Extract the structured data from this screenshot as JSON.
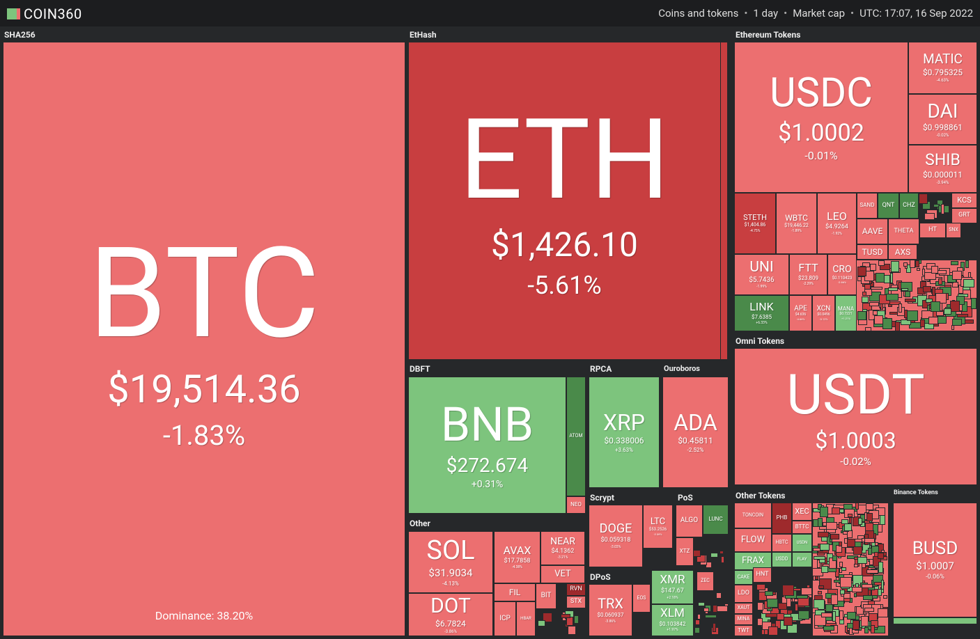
{
  "header": {
    "logo": "COIN360",
    "filters": [
      "Coins and tokens",
      "1 day",
      "Market cap",
      "UTC: 17:07, 16 Sep 2022"
    ]
  },
  "groups": [
    {
      "label": "SHA256",
      "dominance": "Dominance: 38.20%",
      "tiles": [
        {
          "symbol": "BTC",
          "price": "$19,514.36",
          "change": "-1.83%"
        }
      ]
    },
    {
      "label": "EtHash",
      "tiles": [
        {
          "symbol": "ETH",
          "price": "$1,426.10",
          "change": "-5.61%"
        }
      ]
    },
    {
      "label": "Ethereum Tokens",
      "tiles": [
        {
          "symbol": "USDC",
          "price": "$1.0002",
          "change": "-0.01%"
        },
        {
          "symbol": "MATIC",
          "price": "$0.795325",
          "change": "-4.63%"
        },
        {
          "symbol": "DAI",
          "price": "$0.998861",
          "change": "-0.02%"
        },
        {
          "symbol": "SHIB",
          "price": "$0.000011",
          "change": "-3.94%"
        },
        {
          "symbol": "STETH",
          "price": "$1,404.86",
          "change": "-4.75%"
        },
        {
          "symbol": "WBTC",
          "price": "$19,446.22",
          "change": "-1.89%"
        },
        {
          "symbol": "LEO",
          "price": "$4.9264",
          "change": "-1.92%"
        },
        {
          "symbol": "UNI",
          "price": "$5.7436",
          "change": "-1.99%"
        },
        {
          "symbol": "FTT",
          "price": "$23.809",
          "change": "-2.29%"
        },
        {
          "symbol": "CRO",
          "price": "$0.110423",
          "change": "-2.66%"
        },
        {
          "symbol": "LINK",
          "price": "$7.6385",
          "change": "+6.33%"
        },
        {
          "symbol": "APE",
          "price": "$4.636",
          "change": "-4.66%"
        },
        {
          "symbol": "XCN",
          "price": "$0.0496",
          "change": "-3.12%"
        },
        {
          "symbol": "MANA",
          "price": "$0.7221",
          "change": "+1.21%"
        },
        {
          "symbol": "SAND"
        },
        {
          "symbol": "QNT"
        },
        {
          "symbol": "CHZ"
        },
        {
          "symbol": "KCS"
        },
        {
          "symbol": "GRT"
        },
        {
          "symbol": "AAVE"
        },
        {
          "symbol": "THETA"
        },
        {
          "symbol": "HT"
        },
        {
          "symbol": "SNX"
        },
        {
          "symbol": "TUSD"
        },
        {
          "symbol": "AXS"
        }
      ]
    },
    {
      "label": "Omni Tokens",
      "tiles": [
        {
          "symbol": "USDT",
          "price": "$1.0003",
          "change": "-0.02%"
        }
      ]
    },
    {
      "label": "DBFT",
      "tiles": [
        {
          "symbol": "BNB",
          "price": "$272.674",
          "change": "+0.31%"
        },
        {
          "symbol": "ATOM"
        },
        {
          "symbol": "NEO"
        }
      ]
    },
    {
      "label": "RPCA",
      "tiles": [
        {
          "symbol": "XRP",
          "price": "$0.338006",
          "change": "+3.63%"
        }
      ]
    },
    {
      "label": "Ouroboros",
      "tiles": [
        {
          "symbol": "ADA",
          "price": "$0.45811",
          "change": "-2.52%"
        }
      ]
    },
    {
      "label": "Other",
      "tiles": [
        {
          "symbol": "SOL",
          "price": "$31.9034",
          "change": "-4.13%"
        },
        {
          "symbol": "DOT",
          "price": "$6.7824",
          "change": "-3.86%"
        },
        {
          "symbol": "AVAX",
          "price": "$17.7858",
          "change": "-4.38%"
        },
        {
          "symbol": "NEAR",
          "price": "$4.1362",
          "change": "-3.21%"
        },
        {
          "symbol": "VET"
        },
        {
          "symbol": "FIL"
        },
        {
          "symbol": "BIT"
        },
        {
          "symbol": "RVN"
        },
        {
          "symbol": "STX"
        },
        {
          "symbol": "ICP"
        },
        {
          "symbol": "HBAR"
        }
      ]
    },
    {
      "label": "Scrypt",
      "tiles": [
        {
          "symbol": "DOGE",
          "price": "$0.059318",
          "change": "-3.03%"
        },
        {
          "symbol": "LTC",
          "price": "$53.2526",
          "change": "-2.38%"
        }
      ]
    },
    {
      "label": "PoS",
      "tiles": [
        {
          "symbol": "ALGO"
        },
        {
          "symbol": "LUNC"
        },
        {
          "symbol": "XTZ"
        }
      ]
    },
    {
      "label": "DPoS",
      "tiles": [
        {
          "symbol": "TRX",
          "price": "$0.060937",
          "change": "-3.86%"
        },
        {
          "symbol": "EOS"
        }
      ]
    },
    {
      "label": "Other Tokens",
      "tiles": [
        {
          "symbol": "XMR",
          "price": "$147.67",
          "change": "+2.18%"
        },
        {
          "symbol": "XLM",
          "price": "$0.103842",
          "change": "+1.97%"
        },
        {
          "symbol": "ZEC"
        },
        {
          "symbol": "TONCOIN"
        },
        {
          "symbol": "FLOW"
        },
        {
          "symbol": "FRAX"
        },
        {
          "symbol": "PHB"
        },
        {
          "symbol": "XEC"
        },
        {
          "symbol": "BTTC"
        },
        {
          "symbol": "HBTC"
        },
        {
          "symbol": "USDN"
        },
        {
          "symbol": "USDD"
        },
        {
          "symbol": "FLAY"
        },
        {
          "symbol": "CAKE"
        },
        {
          "symbol": "HNT"
        },
        {
          "symbol": "LDO"
        },
        {
          "symbol": "XAUT"
        },
        {
          "symbol": "MINA"
        },
        {
          "symbol": "TWT"
        }
      ]
    },
    {
      "label": "Binance Tokens",
      "tiles": [
        {
          "symbol": "BUSD",
          "price": "$1.0007",
          "change": "-0.06%"
        }
      ]
    }
  ]
}
